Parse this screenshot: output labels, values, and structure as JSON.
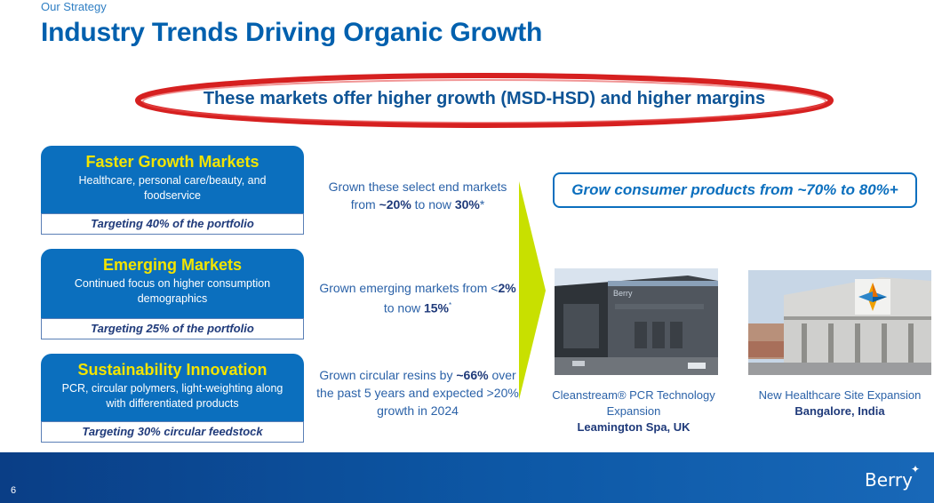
{
  "header": {
    "eyebrow": "Our Strategy",
    "title": "Industry Trends Driving Organic Growth"
  },
  "callout": {
    "text": "These markets offer higher growth (MSD-HSD) and higher margins"
  },
  "cards": [
    {
      "title": "Faster Growth Markets",
      "desc": "Healthcare, personal care/beauty, and foodservice",
      "target": "Targeting 40% of the portfolio"
    },
    {
      "title": "Emerging Markets",
      "desc": "Continued focus on higher consumption demographics",
      "target": "Targeting 25% of the portfolio"
    },
    {
      "title": "Sustainability Innovation",
      "desc": "PCR, circular polymers, light-weighting along with differentiated products",
      "target": "Targeting 30% circular feedstock"
    }
  ],
  "middle": [
    {
      "pre": "Grown these select end markets from ",
      "b1": "~20%",
      "mid": " to now ",
      "b2": "30%",
      "post": "*"
    },
    {
      "pre": "Grown emerging markets from <",
      "b1": "2%",
      "mid": " to now ",
      "b2": "15%",
      "post": "*"
    },
    {
      "pre": "Grown circular resins by ",
      "b1": "~66%",
      "mid": " over the past 5 years and expected >20% growth in 2024",
      "b2": "",
      "post": ""
    }
  ],
  "goal": {
    "text": "Grow consumer products from ~70% to 80%+"
  },
  "photos": [
    {
      "sign": "Berry",
      "caption_line1": "Cleanstream® PCR Technology Expansion",
      "caption_bold": "Leamington Spa, UK"
    },
    {
      "caption_line1": "New Healthcare Site Expansion",
      "caption_bold": "Bangalore, India"
    }
  ],
  "footer": {
    "page_number": "6",
    "logo_text": "Berry"
  },
  "colors": {
    "brand_blue": "#0b6fbe",
    "title_blue": "#0060ae",
    "accent_yellow": "#f3e400",
    "chevron_green": "#c8e000",
    "ellipse_red": "#d62020"
  }
}
